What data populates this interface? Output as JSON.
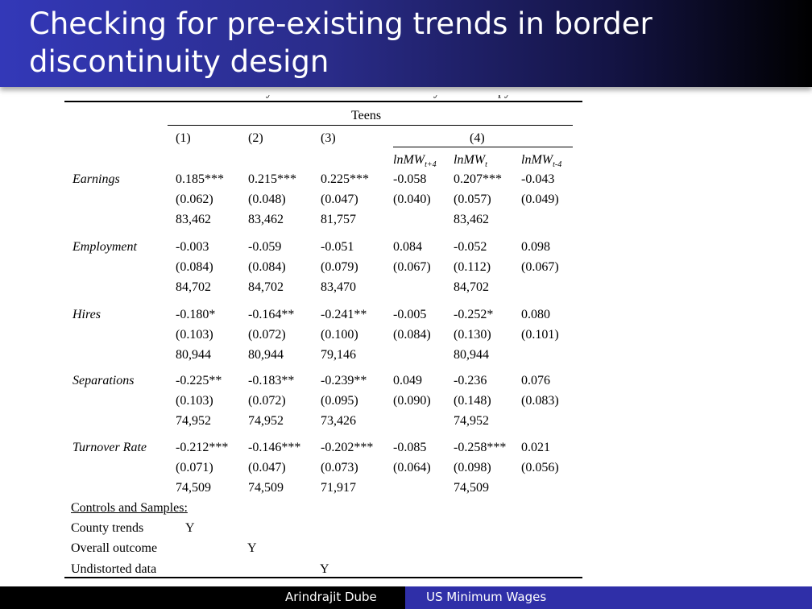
{
  "title": "Checking for pre-existing trends in border discontinuity design",
  "table": {
    "group_header": "Teens",
    "columns": [
      "(1)",
      "(2)",
      "(3)",
      "(4)"
    ],
    "subcolumns": {
      "lead": {
        "base": "lnMW",
        "sub": "t+4"
      },
      "current": {
        "base": "lnMW",
        "sub": "t"
      },
      "lag": {
        "base": "lnMW",
        "sub": "t-4"
      }
    },
    "rows": [
      {
        "label": "Earnings",
        "coef": [
          "0.185***",
          "0.215***",
          "0.225***",
          "-0.058",
          "0.207***",
          "-0.043"
        ],
        "se": [
          "(0.062)",
          "(0.048)",
          "(0.047)",
          "(0.040)",
          "(0.057)",
          "(0.049)"
        ],
        "n": [
          "83,462",
          "83,462",
          "81,757",
          "",
          "83,462",
          ""
        ]
      },
      {
        "label": "Employment",
        "coef": [
          "-0.003",
          "-0.059",
          "-0.051",
          "0.084",
          "-0.052",
          "0.098"
        ],
        "se": [
          "(0.084)",
          "(0.084)",
          "(0.079)",
          "(0.067)",
          "(0.112)",
          "(0.067)"
        ],
        "n": [
          "84,702",
          "84,702",
          "83,470",
          "",
          "84,702",
          ""
        ]
      },
      {
        "label": "Hires",
        "coef": [
          "-0.180*",
          "-0.164**",
          "-0.241**",
          "-0.005",
          "-0.252*",
          "0.080"
        ],
        "se": [
          "(0.103)",
          "(0.072)",
          "(0.100)",
          "(0.084)",
          "(0.130)",
          "(0.101)"
        ],
        "n": [
          "80,944",
          "80,944",
          "79,146",
          "",
          "80,944",
          ""
        ]
      },
      {
        "label": "Separations",
        "coef": [
          "-0.225**",
          "-0.183**",
          "-0.239**",
          "0.049",
          "-0.236",
          "0.076"
        ],
        "se": [
          "(0.103)",
          "(0.072)",
          "(0.095)",
          "(0.090)",
          "(0.148)",
          "(0.083)"
        ],
        "n": [
          "74,952",
          "74,952",
          "73,426",
          "",
          "74,952",
          ""
        ]
      },
      {
        "label": "Turnover Rate",
        "coef": [
          "-0.212***",
          "-0.146***",
          "-0.202***",
          "-0.085",
          "-0.258***",
          "0.021"
        ],
        "se": [
          "(0.071)",
          "(0.047)",
          "(0.073)",
          "(0.064)",
          "(0.098)",
          "(0.056)"
        ],
        "n": [
          "74,509",
          "74,509",
          "71,917",
          "",
          "74,509",
          ""
        ]
      }
    ],
    "controls_header": "Controls and Samples:",
    "controls": [
      {
        "label": "County trends",
        "mark": "Y"
      },
      {
        "label": "Overall outcome",
        "mark": "Y"
      },
      {
        "label": "Undistorted data",
        "mark": "Y"
      }
    ]
  },
  "footer": {
    "author": "Arindrajit Dube",
    "talk": "US Minimum Wages"
  }
}
